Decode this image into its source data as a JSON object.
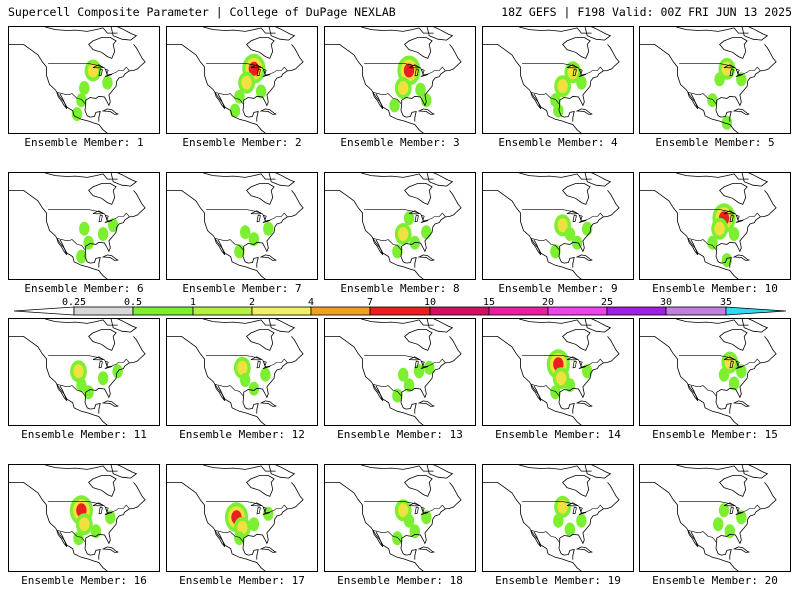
{
  "header": {
    "left_title": "Supercell Composite Parameter | College of DuPage NEXLAB",
    "right_title": "18Z GEFS | F198 Valid: 00Z FRI JUN 13 2025"
  },
  "panels": [
    {
      "label": "Ensemble Member: 1",
      "spots": [
        [
          -92,
          45,
          2
        ],
        [
          -98,
          35,
          1
        ],
        [
          -100,
          28,
          1
        ],
        [
          -82,
          38,
          1
        ],
        [
          -103,
          20,
          1
        ]
      ]
    },
    {
      "label": "Ensemble Member: 2",
      "spots": [
        [
          -90,
          46,
          3
        ],
        [
          -95,
          38,
          2
        ],
        [
          -100,
          30,
          1
        ],
        [
          -85,
          33,
          1
        ],
        [
          -103,
          22,
          1
        ]
      ]
    },
    {
      "label": "Ensemble Member: 3",
      "spots": [
        [
          -92,
          45,
          3
        ],
        [
          -96,
          35,
          2
        ],
        [
          -102,
          25,
          1
        ],
        [
          -84,
          34,
          1
        ],
        [
          -80,
          28,
          1
        ]
      ]
    },
    {
      "label": "Ensemble Member: 4",
      "spots": [
        [
          -88,
          44,
          2
        ],
        [
          -95,
          36,
          2
        ],
        [
          -100,
          28,
          1
        ],
        [
          -82,
          38,
          1
        ],
        [
          -98,
          22,
          1
        ]
      ]
    },
    {
      "label": "Ensemble Member: 5",
      "spots": [
        [
          -90,
          46,
          2
        ],
        [
          -95,
          40,
          1
        ],
        [
          -100,
          28,
          1
        ],
        [
          -80,
          40,
          1
        ],
        [
          -90,
          15,
          1
        ]
      ]
    },
    {
      "label": "Ensemble Member: 6",
      "spots": [
        [
          -98,
          38,
          1
        ],
        [
          -95,
          30,
          1
        ],
        [
          -85,
          35,
          1
        ],
        [
          -78,
          40,
          1
        ],
        [
          -100,
          22,
          1
        ]
      ]
    },
    {
      "label": "Ensemble Member: 7",
      "spots": [
        [
          -96,
          36,
          1
        ],
        [
          -90,
          32,
          1
        ],
        [
          -80,
          38,
          1
        ],
        [
          -100,
          25,
          1
        ]
      ]
    },
    {
      "label": "Ensemble Member: 8",
      "spots": [
        [
          -92,
          44,
          1
        ],
        [
          -96,
          35,
          2
        ],
        [
          -88,
          30,
          1
        ],
        [
          -100,
          25,
          1
        ],
        [
          -80,
          36,
          1
        ]
      ]
    },
    {
      "label": "Ensemble Member: 9",
      "spots": [
        [
          -95,
          40,
          2
        ],
        [
          -90,
          35,
          1
        ],
        [
          -85,
          30,
          1
        ],
        [
          -100,
          25,
          1
        ],
        [
          -78,
          38,
          1
        ]
      ]
    },
    {
      "label": "Ensemble Member: 10",
      "spots": [
        [
          -92,
          44,
          3
        ],
        [
          -95,
          38,
          2
        ],
        [
          -100,
          30,
          1
        ],
        [
          -85,
          35,
          1
        ],
        [
          -90,
          20,
          1
        ]
      ]
    },
    {
      "label": "Ensemble Member: 11",
      "spots": [
        [
          -102,
          40,
          2
        ],
        [
          -100,
          32,
          1
        ],
        [
          -95,
          28,
          1
        ],
        [
          -85,
          36,
          1
        ],
        [
          -75,
          40,
          1
        ]
      ]
    },
    {
      "label": "Ensemble Member: 12",
      "spots": [
        [
          -98,
          42,
          2
        ],
        [
          -96,
          35,
          1
        ],
        [
          -90,
          30,
          1
        ],
        [
          -82,
          38,
          1
        ]
      ]
    },
    {
      "label": "Ensemble Member: 13",
      "spots": [
        [
          -96,
          38,
          1
        ],
        [
          -92,
          32,
          1
        ],
        [
          -85,
          40,
          1
        ],
        [
          -78,
          42,
          1
        ],
        [
          -100,
          26,
          1
        ]
      ]
    },
    {
      "label": "Ensemble Member: 14",
      "spots": [
        [
          -98,
          44,
          3
        ],
        [
          -96,
          36,
          2
        ],
        [
          -100,
          28,
          1
        ],
        [
          -90,
          32,
          1
        ],
        [
          -78,
          40,
          1
        ]
      ]
    },
    {
      "label": "Ensemble Member: 15",
      "spots": [
        [
          -88,
          45,
          2
        ],
        [
          -92,
          38,
          1
        ],
        [
          -85,
          33,
          1
        ],
        [
          -80,
          40,
          1
        ]
      ]
    },
    {
      "label": "Ensemble Member: 16",
      "spots": [
        [
          -100,
          44,
          3
        ],
        [
          -98,
          36,
          2
        ],
        [
          -102,
          28,
          1
        ],
        [
          -90,
          32,
          1
        ],
        [
          -80,
          40,
          1
        ]
      ]
    },
    {
      "label": "Ensemble Member: 17",
      "spots": [
        [
          -102,
          40,
          3
        ],
        [
          -98,
          34,
          2
        ],
        [
          -100,
          28,
          1
        ],
        [
          -90,
          36,
          1
        ],
        [
          -80,
          42,
          1
        ]
      ]
    },
    {
      "label": "Ensemble Member: 18",
      "spots": [
        [
          -96,
          44,
          2
        ],
        [
          -92,
          38,
          1
        ],
        [
          -88,
          32,
          1
        ],
        [
          -80,
          40,
          1
        ],
        [
          -100,
          28,
          1
        ]
      ]
    },
    {
      "label": "Ensemble Member: 19",
      "spots": [
        [
          -95,
          46,
          2
        ],
        [
          -98,
          38,
          1
        ],
        [
          -90,
          33,
          1
        ],
        [
          -82,
          38,
          1
        ]
      ]
    },
    {
      "label": "Ensemble Member: 20",
      "spots": [
        [
          -92,
          44,
          1
        ],
        [
          -96,
          36,
          1
        ],
        [
          -88,
          32,
          1
        ],
        [
          -80,
          40,
          1
        ]
      ]
    }
  ],
  "colorbar": {
    "labels": [
      "0.25",
      "0.5",
      "1",
      "2",
      "4",
      "7",
      "10",
      "15",
      "20",
      "25",
      "30",
      "35"
    ],
    "colors": [
      "#d8d8d8",
      "#7cf030",
      "#b8f040",
      "#f0f060",
      "#f0a020",
      "#e82020",
      "#d01060",
      "#e820a0",
      "#f040f0",
      "#a020e0",
      "#c080e0",
      "#30d8f0"
    ]
  }
}
